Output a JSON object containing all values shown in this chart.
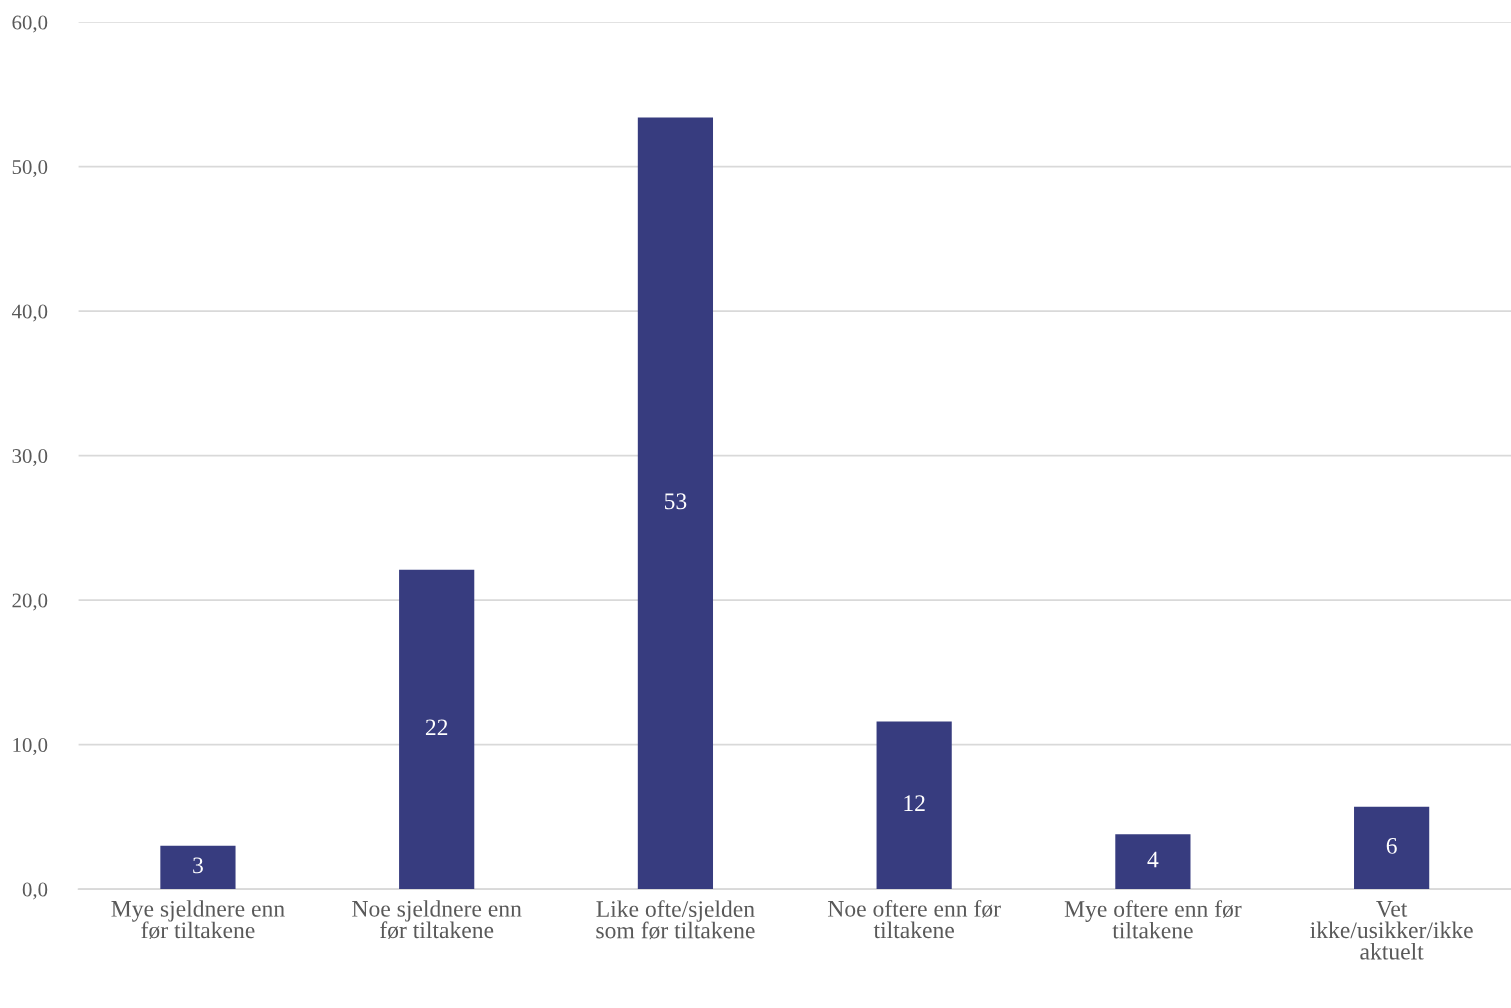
{
  "chart_data": {
    "type": "bar",
    "categories": [
      "Mye sjeldnere enn\nfør tiltakene",
      "Noe sjeldnere enn\nfør tiltakene",
      "Like ofte/sjelden\nsom før tiltakene",
      "Noe oftere enn før\ntiltakene",
      "Mye oftere enn før\ntiltakene",
      "Vet\nikke/usikker/ikke\naktuelt"
    ],
    "values": [
      3.0,
      22.1,
      53.4,
      11.6,
      3.8,
      5.7
    ],
    "value_labels": [
      "3",
      "22",
      "53",
      "12",
      "4",
      "6"
    ],
    "color": "#373c7f",
    "ylim": [
      0,
      60
    ],
    "yticks": [
      {
        "value": 0,
        "label": "0,0"
      },
      {
        "value": 10,
        "label": "10,0"
      },
      {
        "value": 20,
        "label": "20,0"
      },
      {
        "value": 30,
        "label": "30,0"
      },
      {
        "value": 40,
        "label": "40,0"
      },
      {
        "value": 50,
        "label": "50,0"
      },
      {
        "value": 60,
        "label": "60,0"
      }
    ],
    "grid": "y"
  }
}
